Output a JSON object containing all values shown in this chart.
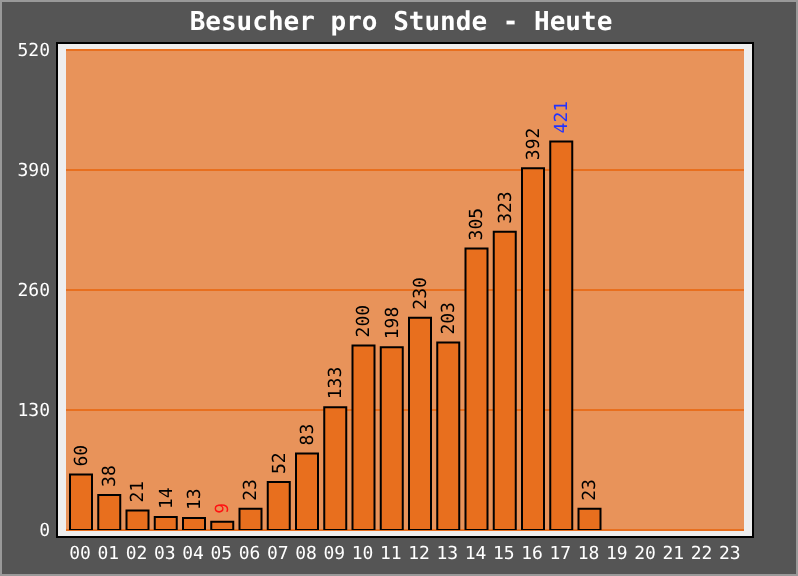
{
  "chart_data": {
    "type": "bar",
    "title": "Besucher pro Stunde - Heute",
    "categories": [
      "00",
      "01",
      "02",
      "03",
      "04",
      "05",
      "06",
      "07",
      "08",
      "09",
      "10",
      "11",
      "12",
      "13",
      "14",
      "15",
      "16",
      "17",
      "18",
      "19",
      "20",
      "21",
      "22",
      "23"
    ],
    "values": [
      60,
      38,
      21,
      14,
      13,
      9,
      23,
      52,
      83,
      133,
      200,
      198,
      230,
      203,
      305,
      323,
      392,
      421,
      23,
      null,
      null,
      null,
      null,
      null
    ],
    "color": "#e86f1e",
    "ylim": [
      0,
      520
    ],
    "yticks": [
      0,
      130,
      260,
      390,
      520
    ],
    "grid": "y",
    "data_labels": true
  }
}
